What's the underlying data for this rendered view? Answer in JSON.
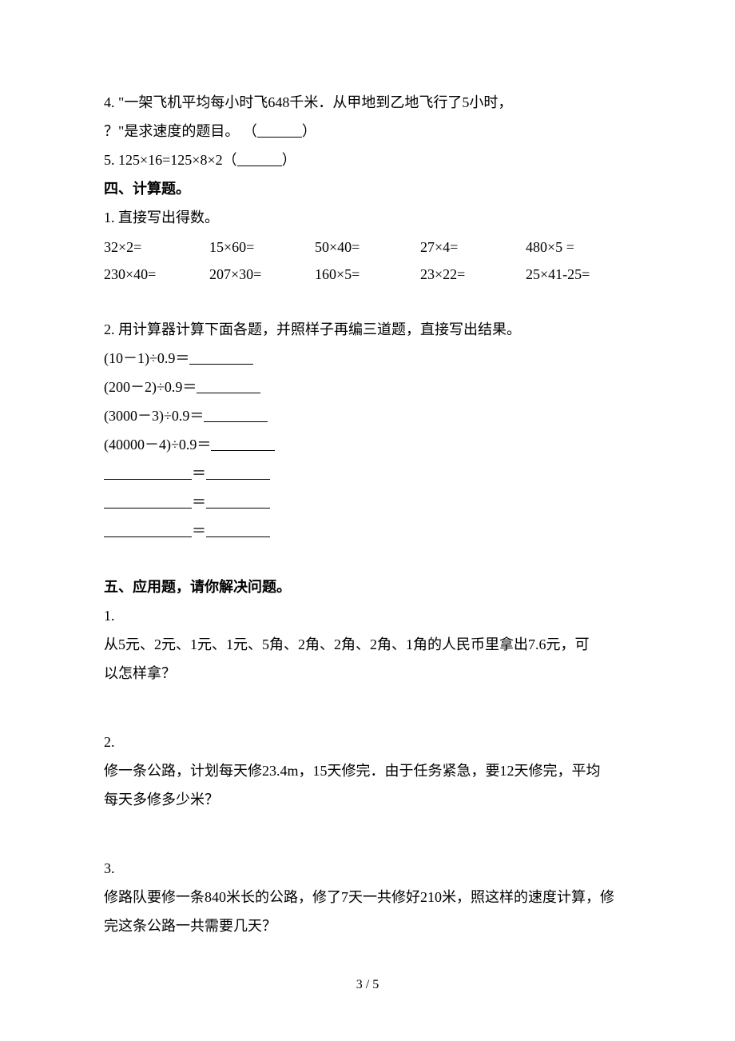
{
  "q4": {
    "line1": "4. \"一架飞机平均每小时飞648千米．从甲地到乙地飞行了5小时，",
    "line2_pre": "？\"是求速度的题目。 （",
    "line2_post": "）"
  },
  "q5": {
    "pre": "5. 125×16=125×8×2（",
    "post": "）"
  },
  "sec4_title": "四、计算题。",
  "sec4_q1_intro": "1. 直接写出得数。",
  "calc_rows": [
    [
      "32×2=",
      "15×60=",
      "50×40=",
      "27×4=",
      "480×5 ="
    ],
    [
      "230×40=",
      "207×30=",
      "160×5=",
      "23×22=",
      "25×41-25="
    ]
  ],
  "sec4_q2_intro": "2. 用计算器计算下面各题，并照样子再编三道题，直接写出结果。",
  "patterns": [
    "(10－1)÷0.9＝",
    "(200－2)÷0.9＝",
    "(3000－3)÷0.9＝",
    "(40000－4)÷0.9＝"
  ],
  "sec5_title": "五、应用题，请你解决问题。",
  "sec5_q1": {
    "num": "1.",
    "line1": "从5元、2元、1元、1元、5角、2角、2角、2角、1角的人民币里拿出7.6元，可",
    "line2": "以怎样拿？"
  },
  "sec5_q2": {
    "num": "2.",
    "line1": "修一条公路，计划每天修23.4m，15天修完．由于任务紧急，要12天修完，平均",
    "line2": "每天多修多少米？"
  },
  "sec5_q3": {
    "num": "3.",
    "line1": "修路队要修一条840米长的公路，修了7天一共修好210米，照这样的速度计算，修",
    "line2": "完这条公路一共需要几天？"
  },
  "page_number": "3 / 5"
}
